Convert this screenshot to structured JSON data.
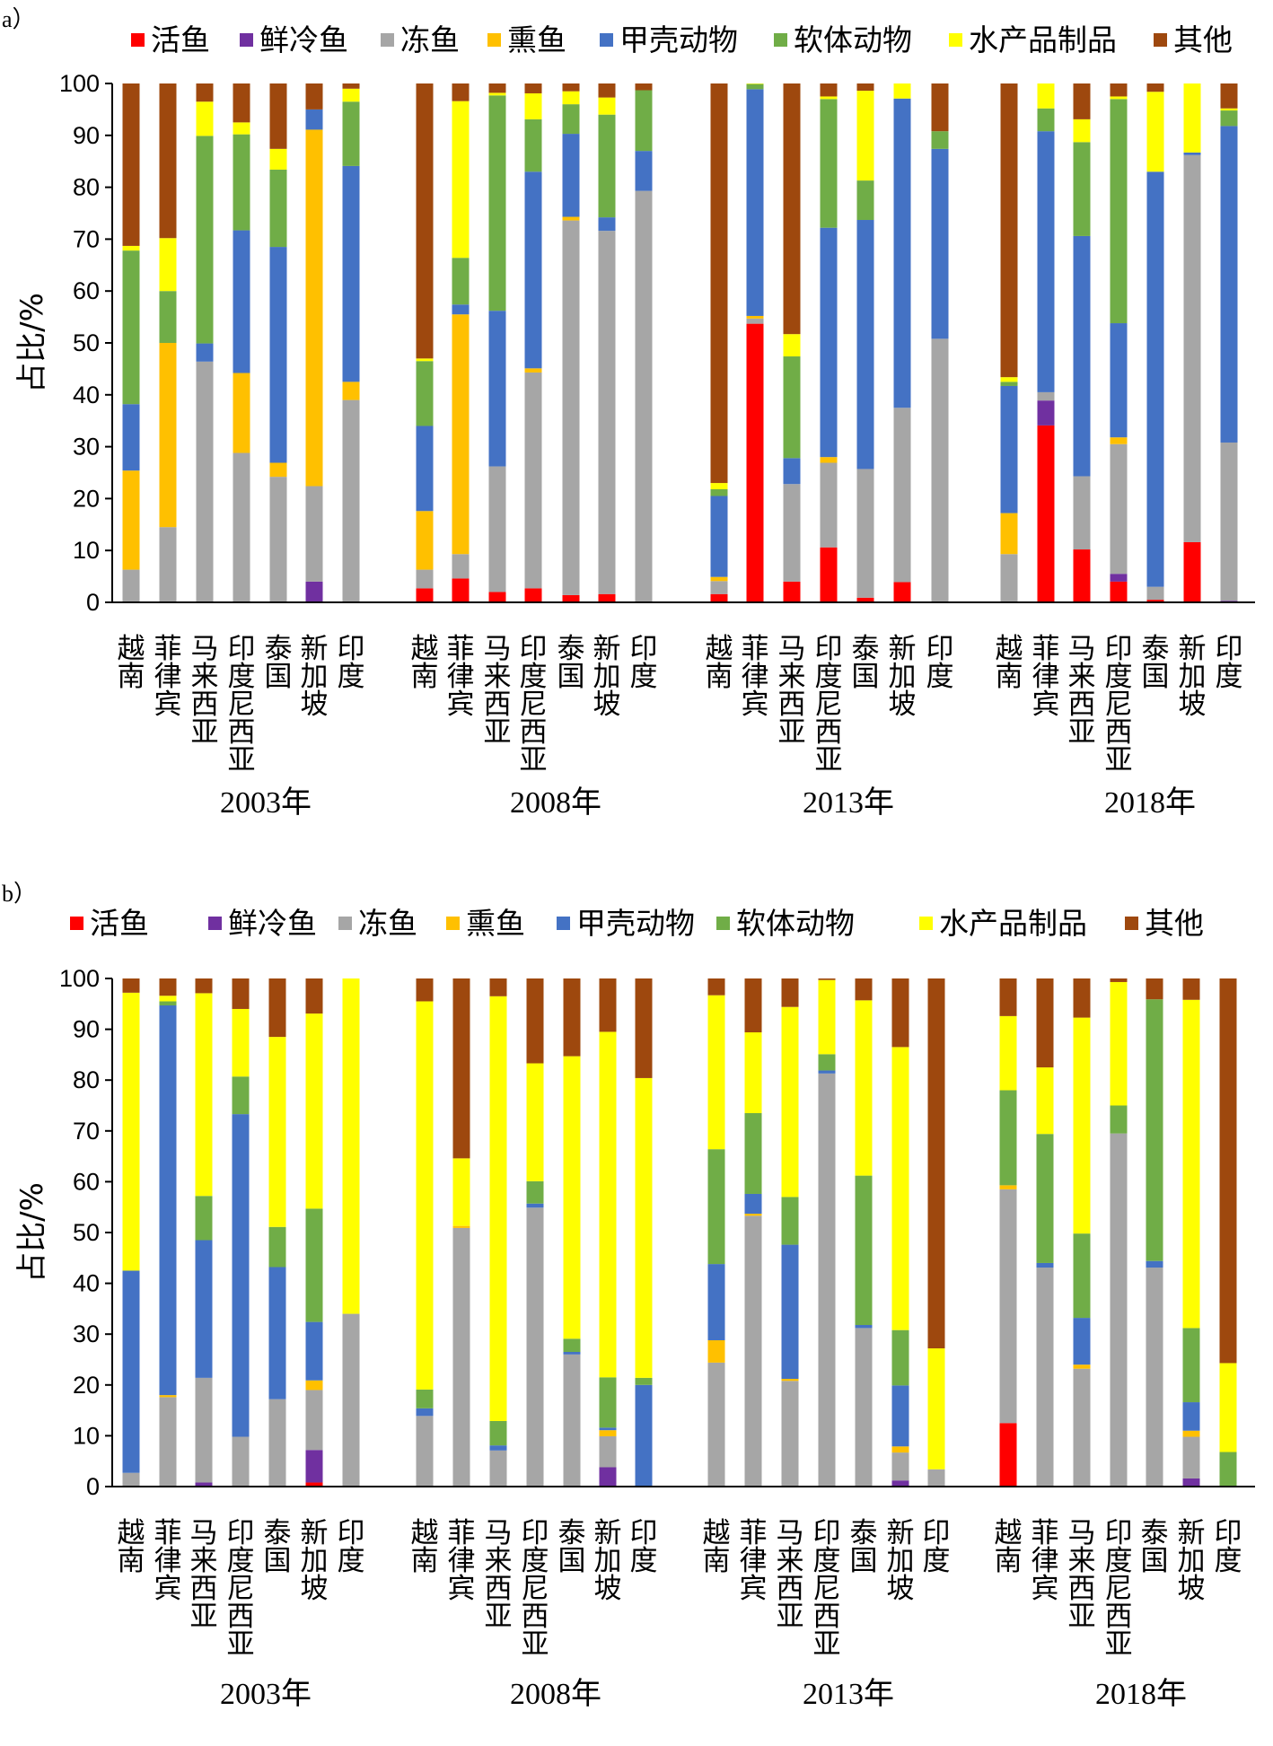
{
  "colors": {
    "活鱼": "#ff0000",
    "鲜冷鱼": "#7030a0",
    "冻鱼": "#a6a6a6",
    "熏鱼": "#ffc000",
    "甲壳动物": "#4472c4",
    "软体动物": "#70ad47",
    "水产品制品": "#ffff00",
    "其他": "#9e480e"
  },
  "chart_data": [
    {
      "panel": "a）",
      "type": "bar",
      "stacked": true,
      "ylabel": "占比/%",
      "ylim": [
        0,
        100
      ],
      "yticks": [
        0,
        10,
        20,
        30,
        40,
        50,
        60,
        70,
        80,
        90,
        100
      ],
      "legend": [
        "活鱼",
        "鲜冷鱼",
        "冻鱼",
        "熏鱼",
        "甲壳动物",
        "软体动物",
        "水产品制品",
        "其他"
      ],
      "legend_position": "top",
      "groups": [
        {
          "year": "2003年",
          "categories": [
            "越南",
            "菲律宾",
            "马来西亚",
            "印度尼西亚",
            "泰国",
            "新加坡",
            "印度"
          ],
          "values": [
            [
              0,
              0,
              6.3,
              19.1,
              12.8,
              29.6,
              0.9,
              31.3
            ],
            [
              0,
              0,
              14.5,
              35.5,
              0,
              10.0,
              10.2,
              29.8
            ],
            [
              0,
              0,
              46.4,
              0,
              3.5,
              40.0,
              6.6,
              3.5
            ],
            [
              0,
              0,
              28.8,
              15.4,
              27.5,
              18.5,
              2.3,
              7.5
            ],
            [
              0,
              0,
              24.2,
              2.7,
              41.6,
              14.9,
              4.0,
              12.6
            ],
            [
              0,
              4.0,
              18.4,
              68.7,
              3.9,
              0,
              0,
              5.0
            ],
            [
              0,
              0,
              39.0,
              3.5,
              41.6,
              12.4,
              2.5,
              1.0
            ]
          ]
        },
        {
          "year": "2008年",
          "categories": [
            "越南",
            "菲律宾",
            "马来西亚",
            "印度尼西亚",
            "泰国",
            "新加坡",
            "印度"
          ],
          "values": [
            [
              2.7,
              0,
              3.6,
              11.3,
              16.4,
              12.5,
              0.5,
              53.0
            ],
            [
              4.6,
              0,
              4.7,
              46.2,
              1.9,
              9.0,
              30.2,
              3.4
            ],
            [
              2.0,
              0,
              24.2,
              0,
              30.0,
              41.5,
              0.5,
              1.8
            ],
            [
              2.7,
              0,
              41.6,
              0.8,
              37.9,
              10.1,
              5.0,
              1.9
            ],
            [
              1.4,
              0,
              72.2,
              0.7,
              16.0,
              5.7,
              2.5,
              1.5
            ],
            [
              1.6,
              0,
              70.0,
              0,
              2.6,
              19.8,
              3.3,
              2.7
            ],
            [
              0,
              0,
              79.3,
              0,
              7.7,
              11.7,
              0,
              1.3
            ]
          ]
        },
        {
          "year": "2013年",
          "categories": [
            "越南",
            "菲律宾",
            "马来西亚",
            "印度尼西亚",
            "泰国",
            "新加坡",
            "印度"
          ],
          "values": [
            [
              1.6,
              0,
              2.5,
              0.8,
              15.6,
              1.3,
              1.2,
              77.0
            ],
            [
              53.7,
              0,
              1.0,
              0.5,
              43.7,
              1.0,
              0.1,
              0
            ],
            [
              4.0,
              0,
              18.8,
              0,
              5.0,
              19.6,
              4.3,
              48.3
            ],
            [
              10.6,
              0,
              16.3,
              1.1,
              44.2,
              24.8,
              0.5,
              2.5
            ],
            [
              0.9,
              0,
              24.8,
              0,
              48.0,
              7.6,
              17.3,
              1.4
            ],
            [
              3.9,
              0,
              33.6,
              0,
              59.6,
              0,
              2.9,
              0
            ],
            [
              0,
              0,
              50.8,
              0,
              36.6,
              3.4,
              0,
              9.2
            ]
          ]
        },
        {
          "year": "2018年",
          "categories": [
            "越南",
            "菲律宾",
            "马来西亚",
            "印度尼西亚",
            "泰国",
            "新加坡",
            "印度"
          ],
          "values": [
            [
              0,
              0,
              9.3,
              7.9,
              24.5,
              0.8,
              0.9,
              56.6
            ],
            [
              34.1,
              4.8,
              1.6,
              0,
              50.3,
              4.4,
              4.8,
              0
            ],
            [
              10.2,
              0,
              14.1,
              0,
              46.3,
              18.1,
              4.4,
              6.9
            ],
            [
              4.0,
              1.5,
              25.0,
              1.3,
              22.0,
              43.2,
              0.5,
              2.5
            ],
            [
              0.5,
              0,
              2.5,
              0,
              80.0,
              0,
              15.4,
              1.6
            ],
            [
              11.6,
              0,
              74.6,
              0,
              0.5,
              0,
              13.3,
              0
            ],
            [
              0,
              0.3,
              30.5,
              0,
              61.0,
              3.0,
              0.4,
              4.8
            ]
          ]
        }
      ]
    },
    {
      "panel": "b）",
      "type": "bar",
      "stacked": true,
      "ylabel": "占比/%",
      "ylim": [
        0,
        100
      ],
      "yticks": [
        0,
        10,
        20,
        30,
        40,
        50,
        60,
        70,
        80,
        90,
        100
      ],
      "legend": [
        "活鱼",
        "鲜冷鱼",
        "冻鱼",
        "熏鱼",
        "甲壳动物",
        "软体动物",
        "水产品制品",
        "其他"
      ],
      "legend_position": "top",
      "groups": [
        {
          "year": "2003年",
          "categories": [
            "越南",
            "菲律宾",
            "马来西亚",
            "印度尼西亚",
            "泰国",
            "新加坡",
            "印度"
          ],
          "values": [
            [
              0,
              0,
              2.7,
              0,
              39.8,
              0,
              54.7,
              2.8
            ],
            [
              0,
              0,
              17.6,
              0.4,
              76.7,
              0.8,
              1.1,
              3.4
            ],
            [
              0,
              0.8,
              20.6,
              0,
              27.1,
              8.7,
              39.9,
              2.9
            ],
            [
              0,
              0,
              9.8,
              0,
              63.5,
              7.4,
              13.3,
              6.0
            ],
            [
              0,
              0,
              17.2,
              0,
              26.0,
              7.9,
              37.4,
              11.5
            ],
            [
              0.8,
              6.4,
              11.8,
              1.9,
              11.5,
              22.3,
              38.4,
              6.9
            ],
            [
              0,
              0,
              34.0,
              0,
              0,
              0,
              66.0,
              0
            ]
          ]
        },
        {
          "year": "2008年",
          "categories": [
            "越南",
            "菲律宾",
            "马来西亚",
            "印度尼西亚",
            "泰国",
            "新加坡",
            "印度"
          ],
          "values": [
            [
              0,
              0,
              13.9,
              0,
              1.5,
              3.7,
              76.4,
              4.5
            ],
            [
              0,
              0,
              50.9,
              0.4,
              0,
              0,
              13.3,
              35.4
            ],
            [
              0,
              0,
              7.1,
              0,
              1.0,
              4.8,
              83.6,
              3.5
            ],
            [
              0,
              0,
              54.9,
              0,
              0.8,
              4.4,
              23.2,
              16.7
            ],
            [
              0,
              0,
              26.0,
              0,
              0.5,
              2.6,
              55.6,
              15.3
            ],
            [
              0,
              3.8,
              6.1,
              1.2,
              0.5,
              9.9,
              68.0,
              10.5
            ],
            [
              0,
              0,
              0,
              0,
              20.0,
              1.4,
              59.0,
              19.6
            ]
          ]
        },
        {
          "year": "2013年",
          "categories": [
            "越南",
            "菲律宾",
            "马来西亚",
            "印度尼西亚",
            "泰国",
            "新加坡",
            "印度"
          ],
          "values": [
            [
              0,
              0,
              24.4,
              4.4,
              15.0,
              22.6,
              30.3,
              3.3
            ],
            [
              0,
              0,
              53.3,
              0.4,
              3.9,
              15.9,
              15.9,
              10.6
            ],
            [
              0,
              0,
              20.8,
              0.4,
              26.4,
              9.4,
              37.4,
              5.6
            ],
            [
              0,
              0,
              81.3,
              0,
              0.6,
              3.2,
              14.6,
              0.3
            ],
            [
              0,
              0,
              31.2,
              0,
              0.6,
              29.4,
              34.5,
              4.3
            ],
            [
              0,
              1.2,
              5.5,
              1.2,
              12.0,
              10.9,
              55.7,
              13.5
            ],
            [
              0,
              0,
              3.4,
              0,
              0,
              0,
              23.8,
              72.8
            ]
          ]
        },
        {
          "year": "2018年",
          "categories": [
            "越南",
            "菲律宾",
            "马来西亚",
            "印度尼西亚",
            "泰国",
            "新加坡",
            "印度"
          ],
          "values": [
            [
              12.5,
              0,
              46.0,
              0.8,
              0,
              18.7,
              14.6,
              7.4
            ],
            [
              0,
              0,
              43.1,
              0,
              0.9,
              25.4,
              13.1,
              17.5
            ],
            [
              0,
              0,
              23.2,
              0.8,
              9.2,
              16.6,
              42.5,
              7.7
            ],
            [
              0,
              0,
              69.5,
              0,
              0,
              5.5,
              24.3,
              0.7
            ],
            [
              0,
              0,
              43.1,
              0,
              1.3,
              51.5,
              0,
              4.1
            ],
            [
              0,
              1.6,
              8.2,
              1.2,
              5.6,
              14.6,
              64.6,
              4.2
            ],
            [
              0,
              0,
              0,
              0,
              0,
              6.8,
              17.5,
              75.7
            ]
          ]
        }
      ]
    }
  ]
}
